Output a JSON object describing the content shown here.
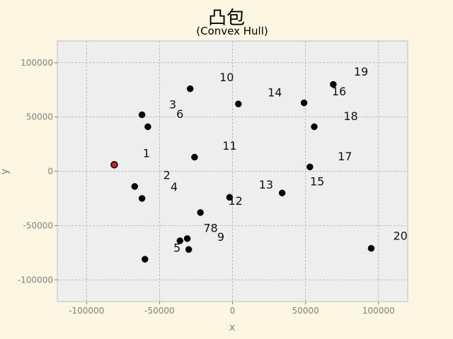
{
  "chart_data": {
    "type": "scatter",
    "title": "凸包",
    "subtitle": "(Convex Hull)",
    "xlabel": "x",
    "ylabel": "y",
    "xlim": [
      -120000,
      120000
    ],
    "ylim": [
      -120000,
      120000
    ],
    "xticks": [
      -100000,
      -50000,
      0,
      50000,
      100000
    ],
    "yticks": [
      -100000,
      -50000,
      0,
      50000,
      100000
    ],
    "grid": true,
    "colors": {
      "point": "#000000",
      "highlight": "#cc2222",
      "plot_bg": "#eeeeee",
      "figure_bg": "#fdf6e3",
      "grid": "#b0b0b0"
    },
    "points": [
      {
        "x": -81000,
        "y": 6000,
        "highlight": true
      },
      {
        "x": -67000,
        "y": -14000
      },
      {
        "x": -62000,
        "y": 52000
      },
      {
        "x": -62000,
        "y": -25000
      },
      {
        "x": -60000,
        "y": -81000
      },
      {
        "x": -58000,
        "y": 41000
      },
      {
        "x": -36000,
        "y": -64000
      },
      {
        "x": -31000,
        "y": -62000
      },
      {
        "x": -30000,
        "y": -72000
      },
      {
        "x": -29000,
        "y": 76000
      },
      {
        "x": -26000,
        "y": 13000
      },
      {
        "x": -22000,
        "y": -38000
      },
      {
        "x": -2000,
        "y": -24000
      },
      {
        "x": 4000,
        "y": 62000
      },
      {
        "x": 34000,
        "y": -20000
      },
      {
        "x": 49000,
        "y": 63000
      },
      {
        "x": 53000,
        "y": 4000
      },
      {
        "x": 56000,
        "y": 41000
      },
      {
        "x": 69000,
        "y": 80000
      },
      {
        "x": 95000,
        "y": -71000
      }
    ],
    "annotations": [
      {
        "text": "1",
        "x": -59000,
        "y": 13000
      },
      {
        "text": "2",
        "x": -45000,
        "y": -7000
      },
      {
        "text": "3",
        "x": -41000,
        "y": 58000
      },
      {
        "text": "4",
        "x": -40000,
        "y": -18000
      },
      {
        "text": "5",
        "x": -38000,
        "y": -74000
      },
      {
        "text": "6",
        "x": -36000,
        "y": 49000
      },
      {
        "text": "78",
        "x": -15000,
        "y": -56000
      },
      {
        "text": "9",
        "x": -8000,
        "y": -64000
      },
      {
        "text": "10",
        "x": -4000,
        "y": 83000
      },
      {
        "text": "11",
        "x": -2000,
        "y": 20000
      },
      {
        "text": "12",
        "x": 2000,
        "y": -31000
      },
      {
        "text": "13",
        "x": 23000,
        "y": -16000
      },
      {
        "text": "14",
        "x": 29000,
        "y": 69000
      },
      {
        "text": "15",
        "x": 58000,
        "y": -13000
      },
      {
        "text": "16",
        "x": 73000,
        "y": 70000
      },
      {
        "text": "17",
        "x": 77000,
        "y": 10000
      },
      {
        "text": "18",
        "x": 81000,
        "y": 47000
      },
      {
        "text": "19",
        "x": 88000,
        "y": 88000
      },
      {
        "text": "20",
        "x": 115000,
        "y": -63000
      }
    ]
  }
}
